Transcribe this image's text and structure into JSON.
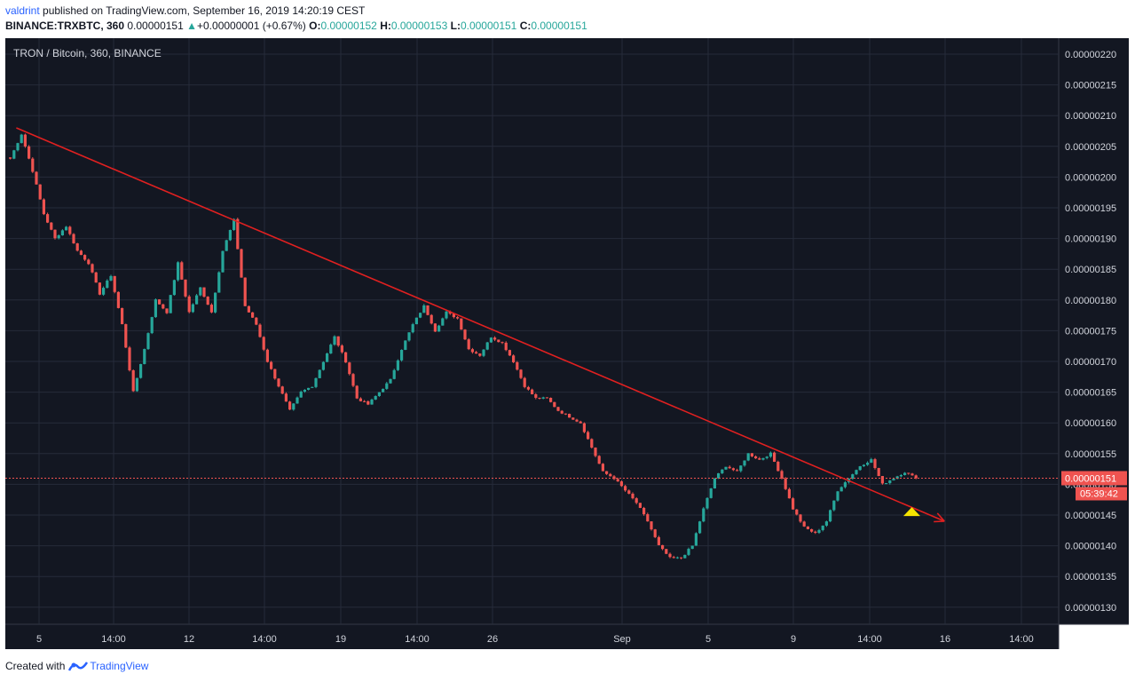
{
  "header": {
    "author": "valdrint",
    "published_text": " published on TradingView.com, September 16, 2019 14:20:19 CEST",
    "symbol": "BINANCE:TRXBTC, 360",
    "last": "0.00000151",
    "change": "+0.00000001 (+0.67%)",
    "o_label": "O:",
    "o_val": "0.00000152",
    "h_label": "H:",
    "h_val": "0.00000153",
    "l_label": "L:",
    "l_val": "0.00000151",
    "c_label": "C:",
    "c_val": "0.00000151"
  },
  "footer": {
    "created_with": "Created with",
    "brand": "TradingView"
  },
  "colors": {
    "background": "#131722",
    "up": "#26a69a",
    "down": "#ef5350",
    "trendline": "#e02020",
    "marker": "#f5e400",
    "grid": "#262b3a"
  },
  "chart_data": {
    "type": "candlestick",
    "title": "TRON / Bitcoin, 360, BINANCE",
    "y_range": [
      1.3e-06,
      2.2e-06
    ],
    "y_ticks": [
      "0.00000220",
      "0.00000215",
      "0.00000210",
      "0.00000205",
      "0.00000200",
      "0.00000195",
      "0.00000190",
      "0.00000185",
      "0.00000180",
      "0.00000175",
      "0.00000170",
      "0.00000165",
      "0.00000160",
      "0.00000155",
      "0.00000150",
      "0.00000145",
      "0.00000140",
      "0.00000135",
      "0.00000130"
    ],
    "x_ticks": [
      "5",
      "14:00",
      "12",
      "14:00",
      "19",
      "14:00",
      "26",
      "Sep",
      "5",
      "9",
      "14:00",
      "16",
      "14:00"
    ],
    "current_price_label": "0.00000151",
    "countdown_label": "05:39:42",
    "current_price": 1.51e-06,
    "close_path": [
      2.03e-06,
      2.07e-06,
      2.01e-06,
      1.94e-06,
      1.9e-06,
      1.92e-06,
      1.88e-06,
      1.86e-06,
      1.81e-06,
      1.84e-06,
      1.76e-06,
      1.65e-06,
      1.72e-06,
      1.8e-06,
      1.78e-06,
      1.86e-06,
      1.78e-06,
      1.82e-06,
      1.78e-06,
      1.88e-06,
      1.93e-06,
      1.79e-06,
      1.76e-06,
      1.7e-06,
      1.66e-06,
      1.62e-06,
      1.65e-06,
      1.66e-06,
      1.7e-06,
      1.74e-06,
      1.7e-06,
      1.64e-06,
      1.63e-06,
      1.65e-06,
      1.67e-06,
      1.72e-06,
      1.76e-06,
      1.79e-06,
      1.75e-06,
      1.78e-06,
      1.77e-06,
      1.72e-06,
      1.71e-06,
      1.74e-06,
      1.73e-06,
      1.7e-06,
      1.66e-06,
      1.64e-06,
      1.64e-06,
      1.62e-06,
      1.61e-06,
      1.6e-06,
      1.56e-06,
      1.52e-06,
      1.51e-06,
      1.49e-06,
      1.47e-06,
      1.44e-06,
      1.4e-06,
      1.38e-06,
      1.38e-06,
      1.4e-06,
      1.46e-06,
      1.51e-06,
      1.53e-06,
      1.52e-06,
      1.55e-06,
      1.54e-06,
      1.55e-06,
      1.51e-06,
      1.46e-06,
      1.43e-06,
      1.42e-06,
      1.44e-06,
      1.49e-06,
      1.51e-06,
      1.53e-06,
      1.54e-06,
      1.5e-06,
      1.51e-06,
      1.52e-06,
      1.51e-06
    ],
    "trendline": {
      "start": {
        "x_index": 2,
        "price": 2.08e-06
      },
      "end": {
        "x_index": 251,
        "price": 1.44e-06
      }
    },
    "breakout_marker_price": 1.46e-06,
    "grid": true
  }
}
